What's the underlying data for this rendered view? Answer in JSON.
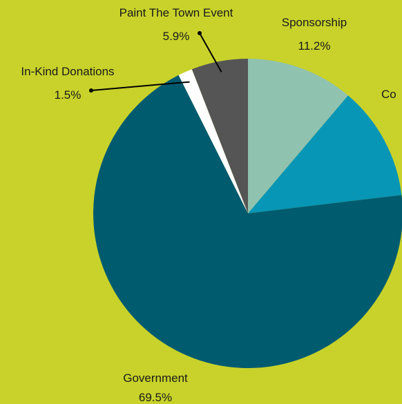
{
  "background_color": "#c8d22a",
  "chart_data": {
    "type": "pie",
    "title": "",
    "slices": [
      {
        "label": "Sponsorship",
        "value": 11.2,
        "value_label": "11.2%",
        "color": "#90c2b0"
      },
      {
        "label": "Co",
        "value": 11.9,
        "value_label": "",
        "color": "#0796b6"
      },
      {
        "label": "Government",
        "value": 69.5,
        "value_label": "69.5%",
        "color": "#005b6f"
      },
      {
        "label": "In-Kind Donations",
        "value": 1.5,
        "value_label": "1.5%",
        "color": "#ffffff"
      },
      {
        "label": "Paint The Town Event",
        "value": 5.9,
        "value_label": "5.9%",
        "color": "#555555"
      }
    ]
  }
}
